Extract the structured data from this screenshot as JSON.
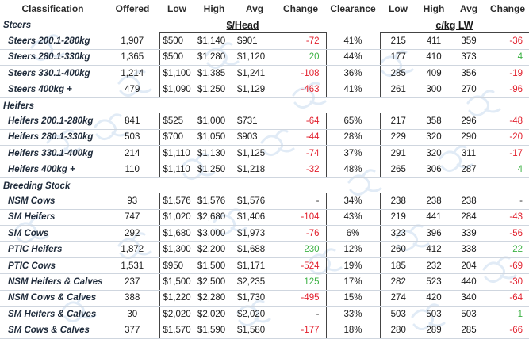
{
  "headers": {
    "classification": "Classification",
    "offered": "Offered",
    "low": "Low",
    "high": "High",
    "avg": "Avg",
    "change": "Change",
    "clearance": "Clearance",
    "low2": "Low",
    "high2": "High",
    "avg2": "Avg",
    "change2": "Change"
  },
  "units": {
    "head": "$/Head",
    "lw": "c/kg LW"
  },
  "sections": [
    {
      "title": "Steers",
      "rows": [
        {
          "name": "Steers 200.1-280kg",
          "offered": "1,907",
          "low": "$500",
          "high": "$1,140",
          "avg": "$901",
          "change": "-72",
          "dir": "neg",
          "clearance": "41%",
          "low2": "215",
          "high2": "411",
          "avg2": "359",
          "change2": "-36",
          "dir2": "neg"
        },
        {
          "name": "Steers 280.1-330kg",
          "offered": "1,365",
          "low": "$500",
          "high": "$1,280",
          "avg": "$1,120",
          "change": "20",
          "dir": "pos",
          "clearance": "44%",
          "low2": "177",
          "high2": "410",
          "avg2": "373",
          "change2": "4",
          "dir2": "pos"
        },
        {
          "name": "Steers 330.1-400kg",
          "offered": "1,214",
          "low": "$1,100",
          "high": "$1,385",
          "avg": "$1,241",
          "change": "-108",
          "dir": "neg",
          "clearance": "36%",
          "low2": "285",
          "high2": "409",
          "avg2": "356",
          "change2": "-19",
          "dir2": "neg"
        },
        {
          "name": "Steers 400kg +",
          "offered": "479",
          "low": "$1,090",
          "high": "$1,250",
          "avg": "$1,129",
          "change": "-463",
          "dir": "neg",
          "clearance": "41%",
          "low2": "261",
          "high2": "300",
          "avg2": "270",
          "change2": "-96",
          "dir2": "neg"
        }
      ]
    },
    {
      "title": "Heifers",
      "rows": [
        {
          "name": "Heifers 200.1-280kg",
          "offered": "841",
          "low": "$525",
          "high": "$1,000",
          "avg": "$731",
          "change": "-64",
          "dir": "neg",
          "clearance": "65%",
          "low2": "217",
          "high2": "358",
          "avg2": "296",
          "change2": "-48",
          "dir2": "neg"
        },
        {
          "name": "Heifers 280.1-330kg",
          "offered": "503",
          "low": "$700",
          "high": "$1,050",
          "avg": "$903",
          "change": "-44",
          "dir": "neg",
          "clearance": "28%",
          "low2": "229",
          "high2": "320",
          "avg2": "290",
          "change2": "-20",
          "dir2": "neg"
        },
        {
          "name": "Heifers 330.1-400kg",
          "offered": "214",
          "low": "$1,110",
          "high": "$1,130",
          "avg": "$1,125",
          "change": "-74",
          "dir": "neg",
          "clearance": "37%",
          "low2": "291",
          "high2": "320",
          "avg2": "311",
          "change2": "-17",
          "dir2": "neg"
        },
        {
          "name": "Heifers 400kg +",
          "offered": "110",
          "low": "$1,110",
          "high": "$1,250",
          "avg": "$1,218",
          "change": "-32",
          "dir": "neg",
          "clearance": "48%",
          "low2": "265",
          "high2": "306",
          "avg2": "287",
          "change2": "4",
          "dir2": "pos"
        }
      ]
    },
    {
      "title": "Breeding Stock",
      "rows": [
        {
          "name": "NSM Cows",
          "offered": "93",
          "low": "$1,576",
          "high": "$1,576",
          "avg": "$1,576",
          "change": "-",
          "dir": "neu",
          "clearance": "34%",
          "low2": "238",
          "high2": "238",
          "avg2": "238",
          "change2": "-",
          "dir2": "neu"
        },
        {
          "name": "SM Heifers",
          "offered": "747",
          "low": "$1,020",
          "high": "$2,680",
          "avg": "$1,406",
          "change": "-104",
          "dir": "neg",
          "clearance": "43%",
          "low2": "219",
          "high2": "441",
          "avg2": "284",
          "change2": "-43",
          "dir2": "neg"
        },
        {
          "name": "SM Cows",
          "offered": "292",
          "low": "$1,680",
          "high": "$3,000",
          "avg": "$1,973",
          "change": "-76",
          "dir": "neg",
          "clearance": "6%",
          "low2": "323",
          "high2": "396",
          "avg2": "339",
          "change2": "-56",
          "dir2": "neg"
        },
        {
          "name": "PTIC Heifers",
          "offered": "1,872",
          "low": "$1,300",
          "high": "$2,200",
          "avg": "$1,688",
          "change": "230",
          "dir": "pos",
          "clearance": "12%",
          "low2": "260",
          "high2": "412",
          "avg2": "338",
          "change2": "22",
          "dir2": "pos"
        },
        {
          "name": "PTIC Cows",
          "offered": "1,531",
          "low": "$950",
          "high": "$1,500",
          "avg": "$1,171",
          "change": "-524",
          "dir": "neg",
          "clearance": "19%",
          "low2": "185",
          "high2": "232",
          "avg2": "204",
          "change2": "-69",
          "dir2": "neg"
        },
        {
          "name": "NSM Heifers & Calves",
          "offered": "237",
          "low": "$1,500",
          "high": "$2,500",
          "avg": "$2,235",
          "change": "125",
          "dir": "pos",
          "clearance": "17%",
          "low2": "282",
          "high2": "523",
          "avg2": "440",
          "change2": "-30",
          "dir2": "neg"
        },
        {
          "name": "NSM Cows & Calves",
          "offered": "388",
          "low": "$1,220",
          "high": "$2,280",
          "avg": "$1,730",
          "change": "-495",
          "dir": "neg",
          "clearance": "15%",
          "low2": "274",
          "high2": "420",
          "avg2": "340",
          "change2": "-64",
          "dir2": "neg"
        },
        {
          "name": "SM Heifers & Calves",
          "offered": "30",
          "low": "$2,020",
          "high": "$2,020",
          "avg": "$2,020",
          "change": "-",
          "dir": "neu",
          "clearance": "33%",
          "low2": "503",
          "high2": "503",
          "avg2": "503",
          "change2": "1",
          "dir2": "pos"
        },
        {
          "name": "SM Cows & Calves",
          "offered": "377",
          "low": "$1,570",
          "high": "$1,590",
          "avg": "$1,580",
          "change": "-177",
          "dir": "neg",
          "clearance": "18%",
          "low2": "280",
          "high2": "289",
          "avg2": "285",
          "change2": "-66",
          "dir2": "neg"
        }
      ]
    }
  ],
  "colors": {
    "positive": "#3bb143",
    "negative": "#e2222f",
    "neutral": "#333333"
  },
  "watermark_icon": "pale-blue-mascot-watermark-icon"
}
